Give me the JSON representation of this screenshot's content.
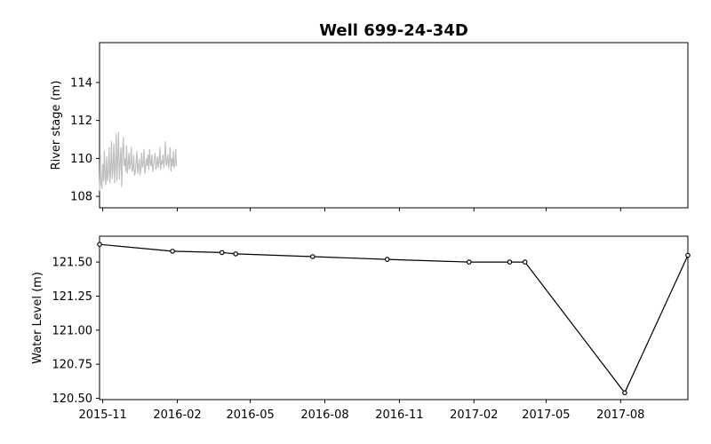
{
  "chart_data": [
    {
      "type": "line",
      "title": "Well 699-24-34D",
      "ylabel": "River stage (m)",
      "xlim": [
        "2015-10-28",
        "2017-10-23"
      ],
      "ylim": [
        107.4,
        116.1
      ],
      "xticks": [
        "2015-11",
        "2016-02",
        "2016-05",
        "2016-08",
        "2016-11",
        "2017-02",
        "2017-05",
        "2017-08"
      ],
      "xticks_labeled": false,
      "yticks": [
        108,
        110,
        112,
        114
      ],
      "grid": false,
      "series": [
        {
          "color": "#bfbfbf",
          "x_range": [
            "2015-10-28",
            "2016-01-31"
          ],
          "values": [
            108.3,
            110.2,
            108.6,
            108.4,
            109.7,
            108.8,
            110.4,
            109.0,
            108.6,
            110.1,
            108.8,
            109.2,
            110.6,
            108.7,
            109.3,
            110.9,
            108.9,
            109.5,
            110.8,
            108.7,
            109.6,
            111.3,
            108.8,
            110.0,
            111.4,
            108.9,
            109.8,
            110.6,
            108.5,
            110.3,
            111.1,
            109.6,
            110.0,
            109.3,
            110.7,
            109.2,
            109.6,
            110.3,
            109.4,
            109.7,
            110.6,
            109.3,
            109.4,
            110.2,
            109.1,
            109.3,
            109.8,
            110.4,
            109.2,
            109.6,
            110.0,
            109.1,
            109.4,
            110.3,
            109.5,
            109.7,
            110.5,
            109.2,
            109.5,
            110.0,
            109.6,
            110.2,
            109.4,
            110.5,
            109.7,
            109.6,
            110.2,
            109.3,
            109.6,
            109.9,
            110.3,
            109.4,
            109.7,
            110.1,
            109.5,
            109.8,
            110.6,
            109.4,
            109.9,
            109.7,
            110.2,
            109.5,
            110.0,
            110.9,
            109.6,
            109.8,
            110.2,
            109.5,
            109.9,
            110.6,
            109.3,
            110.0,
            109.6,
            110.4,
            109.5,
            109.7,
            110.5,
            109.6
          ]
        }
      ]
    },
    {
      "type": "line",
      "ylabel": "Water Level (m)",
      "xlim": [
        "2015-10-28",
        "2017-10-23"
      ],
      "ylim": [
        120.49,
        121.69
      ],
      "xticks": [
        "2015-11",
        "2016-02",
        "2016-05",
        "2016-08",
        "2016-11",
        "2017-02",
        "2017-05",
        "2017-08"
      ],
      "yticks": [
        120.5,
        120.75,
        121.0,
        121.25,
        121.5
      ],
      "ytick_labels": [
        "120.50",
        "120.75",
        "121.00",
        "121.25",
        "121.50"
      ],
      "grid": false,
      "series": [
        {
          "color": "#000000",
          "marker": "o",
          "x": [
            "2015-10-28",
            "2016-01-26",
            "2016-03-27",
            "2016-04-13",
            "2016-07-17",
            "2016-10-17",
            "2017-01-26",
            "2017-03-17",
            "2017-04-05",
            "2017-08-06",
            "2017-10-23"
          ],
          "values": [
            121.63,
            121.58,
            121.57,
            121.56,
            121.54,
            121.52,
            121.5,
            121.5,
            121.5,
            120.54,
            121.55
          ]
        }
      ]
    }
  ]
}
